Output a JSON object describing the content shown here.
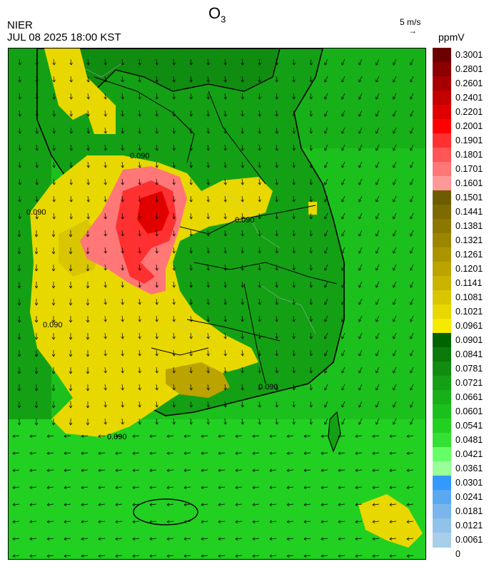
{
  "header": {
    "title_main": "O",
    "title_sub": "3",
    "agency": "NIER",
    "datetime": "JUL 08 2025 18:00 KST",
    "wind_reference": "5 m/s",
    "wind_arrow_glyph": "→",
    "unit": "ppmV"
  },
  "colorbar": {
    "labels": [
      "0.3001",
      "0.2801",
      "0.2601",
      "0.2401",
      "0.2201",
      "0.2001",
      "0.1901",
      "0.1801",
      "0.1701",
      "0.1601",
      "0.1501",
      "0.1441",
      "0.1381",
      "0.1321",
      "0.1261",
      "0.1201",
      "0.1141",
      "0.1081",
      "0.1021",
      "0.0961",
      "0.0901",
      "0.0841",
      "0.0781",
      "0.0721",
      "0.0661",
      "0.0601",
      "0.0541",
      "0.0481",
      "0.0421",
      "0.0361",
      "0.0301",
      "0.0241",
      "0.0181",
      "0.0121",
      "0.0061",
      "0"
    ],
    "colors": [
      "#6b0000",
      "#8b0000",
      "#a80000",
      "#c40000",
      "#e00000",
      "#ff0000",
      "#ff3030",
      "#ff5555",
      "#ff7777",
      "#ff9999",
      "#6e5c00",
      "#7d6a00",
      "#8c7800",
      "#9c8600",
      "#ab9400",
      "#bba300",
      "#cab400",
      "#d9c600",
      "#e8d800",
      "#f5ea00",
      "#006400",
      "#0a7a0a",
      "#108c10",
      "#14a014",
      "#18b018",
      "#1cc01c",
      "#22d022",
      "#33e033",
      "#66ff66",
      "#99ff99",
      "#3399ff",
      "#5aa8f0",
      "#7ab6ec",
      "#90c2ea",
      "#a8cfea"
    ]
  },
  "contour_labels": [
    "0.090",
    "0.090",
    "0.090",
    "0.090",
    "0.090",
    "0.090"
  ],
  "map": {
    "ocean_color": "#1cc01c",
    "land_color": "#14a014",
    "ozone_high_color": "#ff7777",
    "ozone_peak_color": "#e00000",
    "ozone_mid_color": "#e8d800"
  }
}
